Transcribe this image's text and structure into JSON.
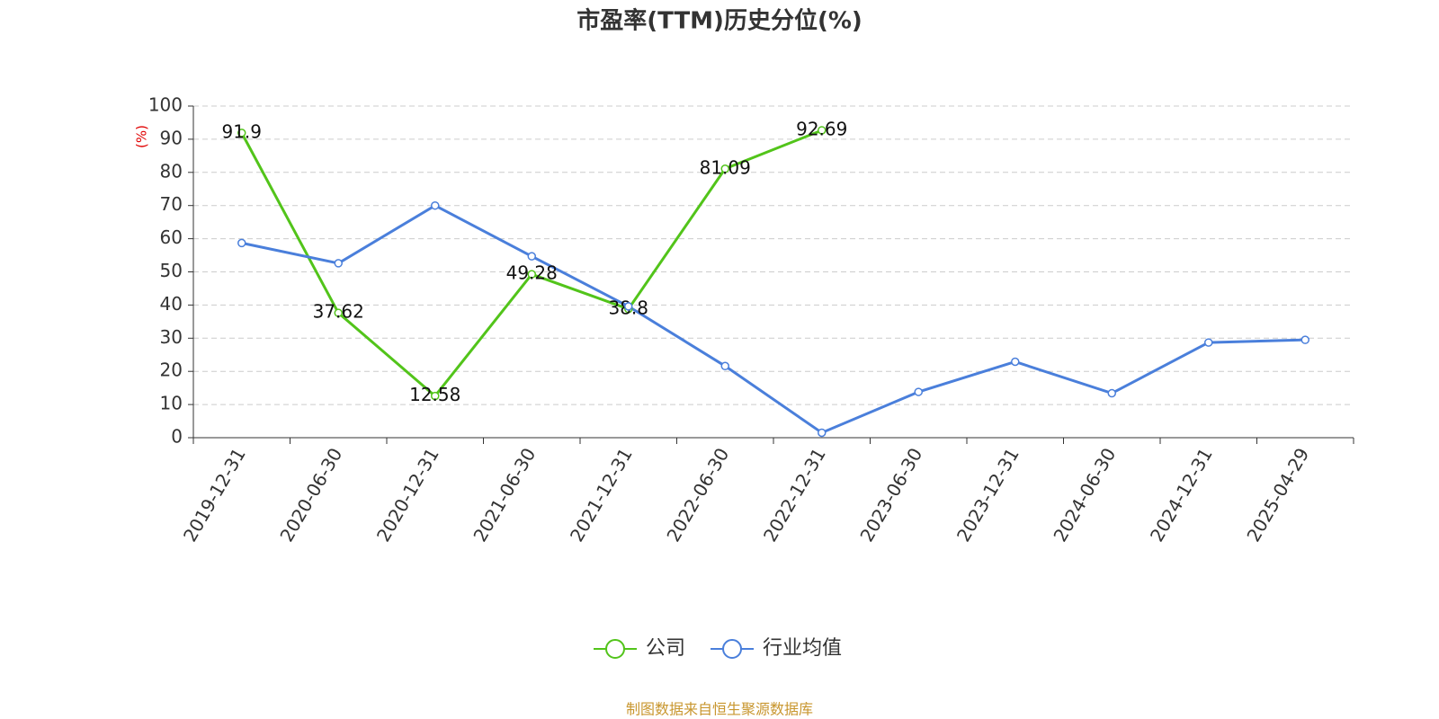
{
  "chart_data": {
    "type": "line",
    "title": "市盈率(TTM)历史分位(%)",
    "y_label": "(%)",
    "source": "制图数据来自恒生聚源数据库",
    "categories": [
      "2019-12-31",
      "2020-06-30",
      "2020-12-31",
      "2021-06-30",
      "2021-12-31",
      "2022-06-30",
      "2022-12-31",
      "2023-06-30",
      "2023-12-31",
      "2024-06-30",
      "2024-12-31",
      "2025-04-29"
    ],
    "series": [
      {
        "name": "公司",
        "color": "#52c41a",
        "values": [
          91.9,
          37.62,
          12.58,
          49.28,
          38.8,
          81.09,
          92.69,
          null,
          null,
          null,
          null,
          null
        ],
        "show_labels": true
      },
      {
        "name": "行业均值",
        "color": "#4a7fdb",
        "values": [
          58.7,
          52.6,
          70.0,
          54.7,
          39.6,
          21.6,
          1.5,
          13.8,
          22.9,
          13.4,
          28.7,
          29.5
        ],
        "show_labels": false
      }
    ],
    "ylim": [
      0,
      100
    ],
    "yticks": [
      0,
      10,
      20,
      30,
      40,
      50,
      60,
      70,
      80,
      90,
      100
    ],
    "grid": true,
    "legend": "bottom"
  }
}
